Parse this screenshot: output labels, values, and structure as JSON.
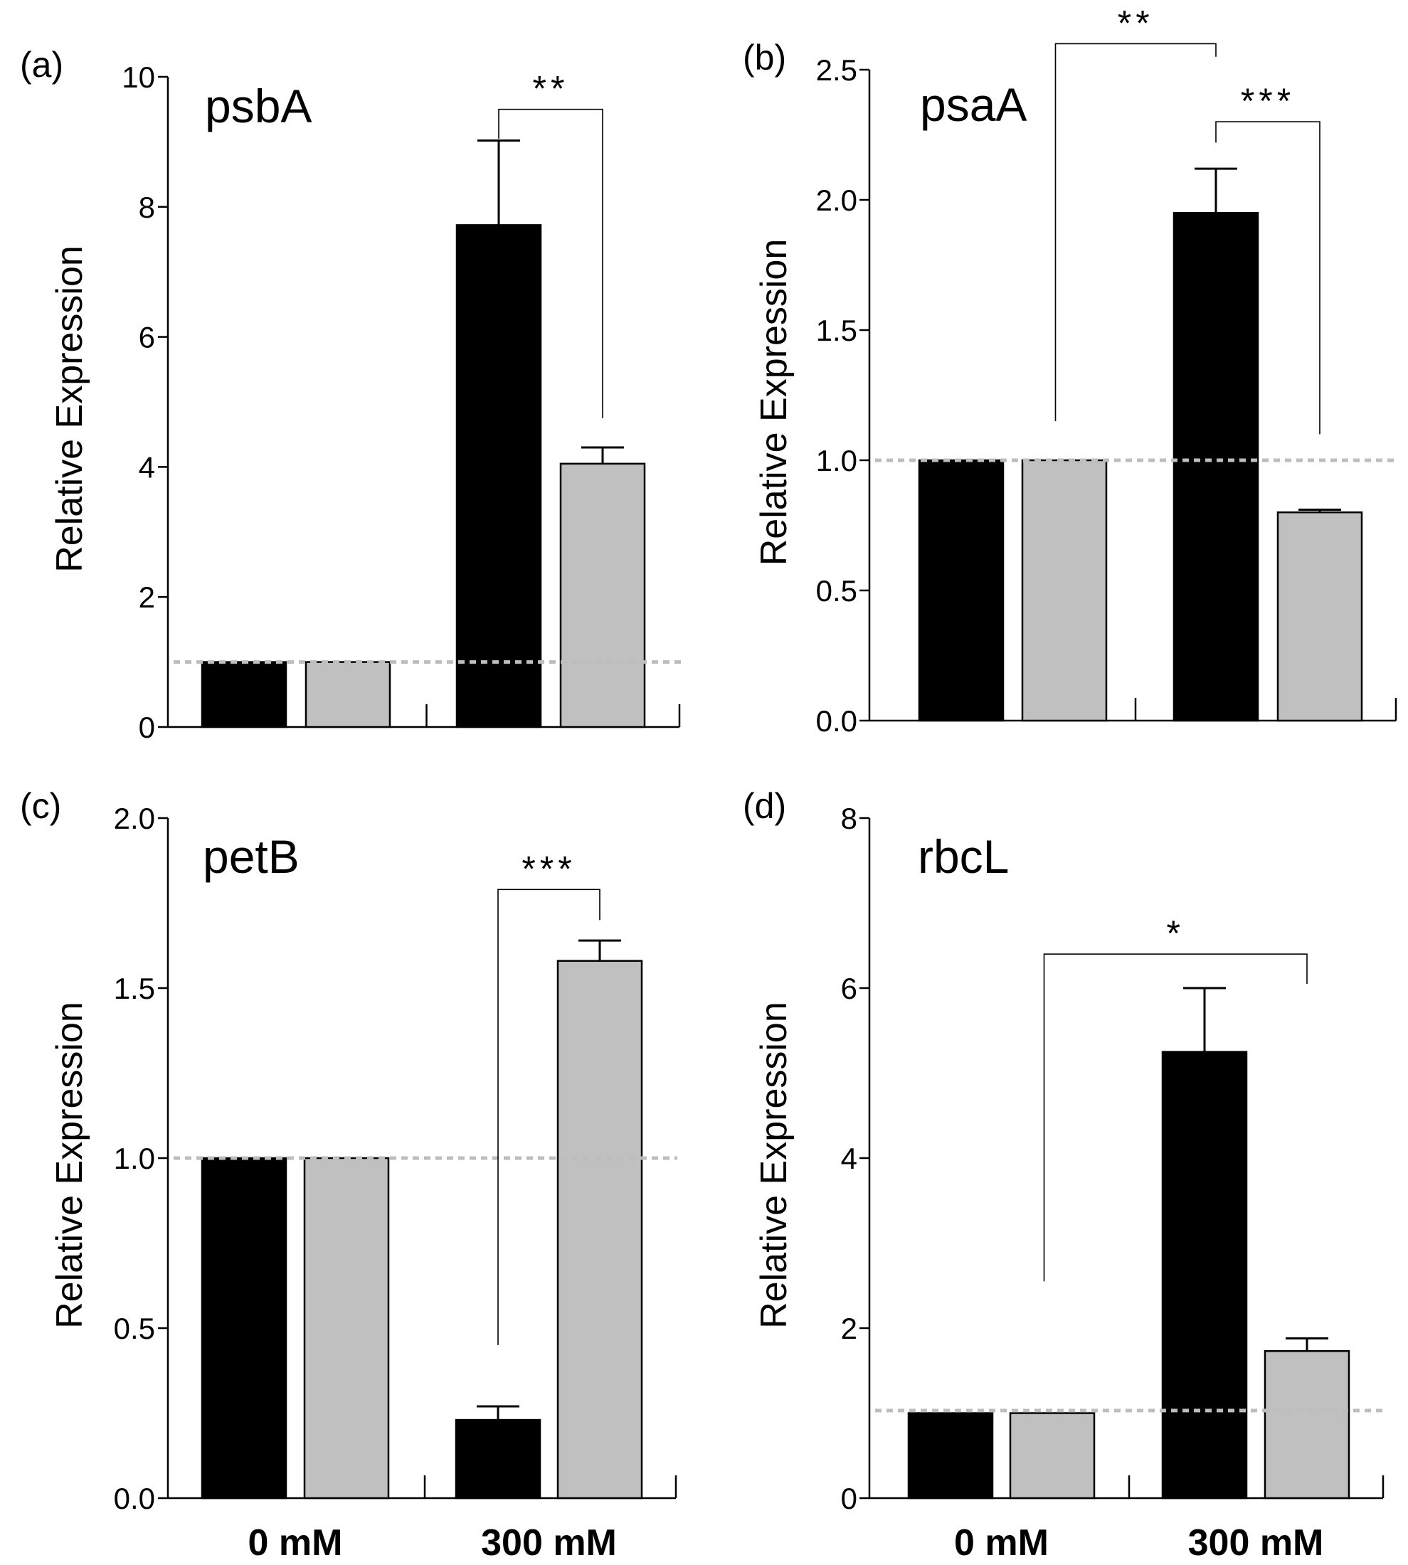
{
  "chart_data": [
    {
      "panel": "(a)",
      "type": "bar",
      "title": "psbA",
      "ylabel": "Relative Expression",
      "ylim": [
        0,
        10
      ],
      "yticks": [
        0,
        2,
        4,
        6,
        8,
        10
      ],
      "ytick_labels": [
        "0",
        "2",
        "4",
        "6",
        "8",
        "10"
      ],
      "categories": [
        "0 mM",
        "300 mM"
      ],
      "show_xlabels": false,
      "series": [
        {
          "name": "black",
          "color": "#000000",
          "values": [
            1.0,
            7.72
          ],
          "errors": [
            0,
            1.3
          ]
        },
        {
          "name": "gray",
          "color": "#c0c0c0",
          "values": [
            1.0,
            4.05
          ],
          "errors": [
            0,
            0.25
          ]
        }
      ],
      "reference_line": 1.0,
      "significance": [
        {
          "from": [
            1,
            0
          ],
          "to": [
            1,
            1
          ],
          "label": "**",
          "height": 9.5,
          "left_drop": 9.05,
          "right_drop": 4.75
        }
      ]
    },
    {
      "panel": "(b)",
      "type": "bar",
      "title": "psaA",
      "ylabel": "Relative Expression",
      "ylim": [
        0,
        2.5
      ],
      "yticks": [
        0,
        0.5,
        1.0,
        1.5,
        2.0,
        2.5
      ],
      "ytick_labels": [
        "0.0",
        "0.5",
        "1.0",
        "1.5",
        "2.0",
        "2.5"
      ],
      "categories": [
        "0 mM",
        "300 mM"
      ],
      "show_xlabels": false,
      "series": [
        {
          "name": "black",
          "color": "#000000",
          "values": [
            1.0,
            1.95
          ],
          "errors": [
            0,
            0.17
          ]
        },
        {
          "name": "gray",
          "color": "#c0c0c0",
          "values": [
            1.0,
            0.8
          ],
          "errors": [
            0,
            0.01
          ]
        }
      ],
      "reference_line": 1.0,
      "significance": [
        {
          "from": [
            0,
            0.5
          ],
          "to": [
            1,
            0
          ],
          "label": "**",
          "height": 2.6,
          "left_drop": 1.15,
          "right_drop": 2.55
        },
        {
          "from": [
            1,
            0
          ],
          "to": [
            1,
            1
          ],
          "label": "***",
          "height": 2.3,
          "left_drop": 2.22,
          "right_drop": 1.1
        }
      ]
    },
    {
      "panel": "(c)",
      "type": "bar",
      "title": "petB",
      "ylabel": "Relative Expression",
      "ylim": [
        0,
        2.0
      ],
      "yticks": [
        0,
        0.5,
        1.0,
        1.5,
        2.0
      ],
      "ytick_labels": [
        "0.0",
        "0.5",
        "1.0",
        "1.5",
        "2.0"
      ],
      "categories": [
        "0 mM",
        "300 mM"
      ],
      "show_xlabels": true,
      "series": [
        {
          "name": "black",
          "color": "#000000",
          "values": [
            1.0,
            0.23
          ],
          "errors": [
            0,
            0.04
          ]
        },
        {
          "name": "gray",
          "color": "#c0c0c0",
          "values": [
            1.0,
            1.58
          ],
          "errors": [
            0,
            0.06
          ]
        }
      ],
      "reference_line": 1.0,
      "significance": [
        {
          "from": [
            1,
            0
          ],
          "to": [
            1,
            1
          ],
          "label": "***",
          "height": 1.79,
          "left_drop": 0.45,
          "right_drop": 1.7
        }
      ]
    },
    {
      "panel": "(d)",
      "type": "bar",
      "title": "rbcL",
      "ylabel": "Relative Expression",
      "ylim": [
        0,
        8
      ],
      "yticks": [
        0,
        2,
        4,
        6,
        8
      ],
      "ytick_labels": [
        "0",
        "2",
        "4",
        "6",
        "8"
      ],
      "categories": [
        "0 mM",
        "300 mM"
      ],
      "show_xlabels": true,
      "series": [
        {
          "name": "black",
          "color": "#000000",
          "values": [
            1.0,
            5.25
          ],
          "errors": [
            0,
            0.75
          ]
        },
        {
          "name": "gray",
          "color": "#c0c0c0",
          "values": [
            1.0,
            1.73
          ],
          "errors": [
            0,
            0.15
          ]
        }
      ],
      "reference_line": 1.03,
      "significance": [
        {
          "from": [
            0,
            0.5
          ],
          "to": [
            1,
            1
          ],
          "label": "*",
          "height": 6.4,
          "left_drop": 2.55,
          "right_drop": 6.05
        }
      ]
    }
  ]
}
